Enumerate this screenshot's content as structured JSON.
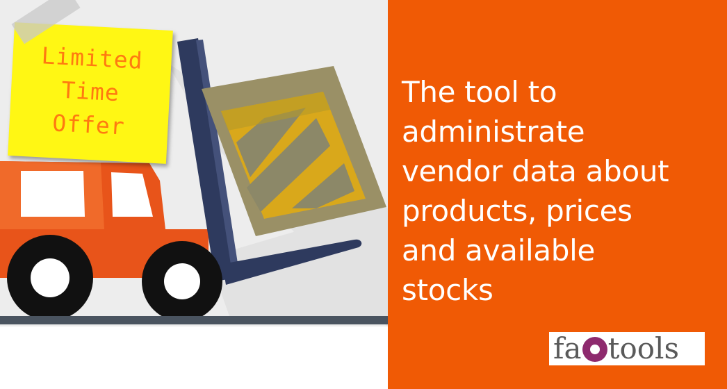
{
  "sticky_note": {
    "lines": [
      "Limited",
      "Time",
      "Offer"
    ]
  },
  "headline": {
    "lines": [
      "The tool to",
      "administrate",
      "vendor data about",
      "products, prices",
      "and available",
      "stocks"
    ]
  },
  "logo": {
    "text_before": "fa",
    "text_after": "tools"
  },
  "colors": {
    "accent_orange": "#f05a05",
    "sticky_yellow": "#fff714",
    "forklift_orange": "#e8541a",
    "mast_navy": "#2e3a5e",
    "crate_gold": "#c9a21c",
    "logo_purple": "#8e2a6e"
  },
  "icons": [
    "forklift-illustration",
    "crate-icon",
    "fao-logo-icon"
  ]
}
